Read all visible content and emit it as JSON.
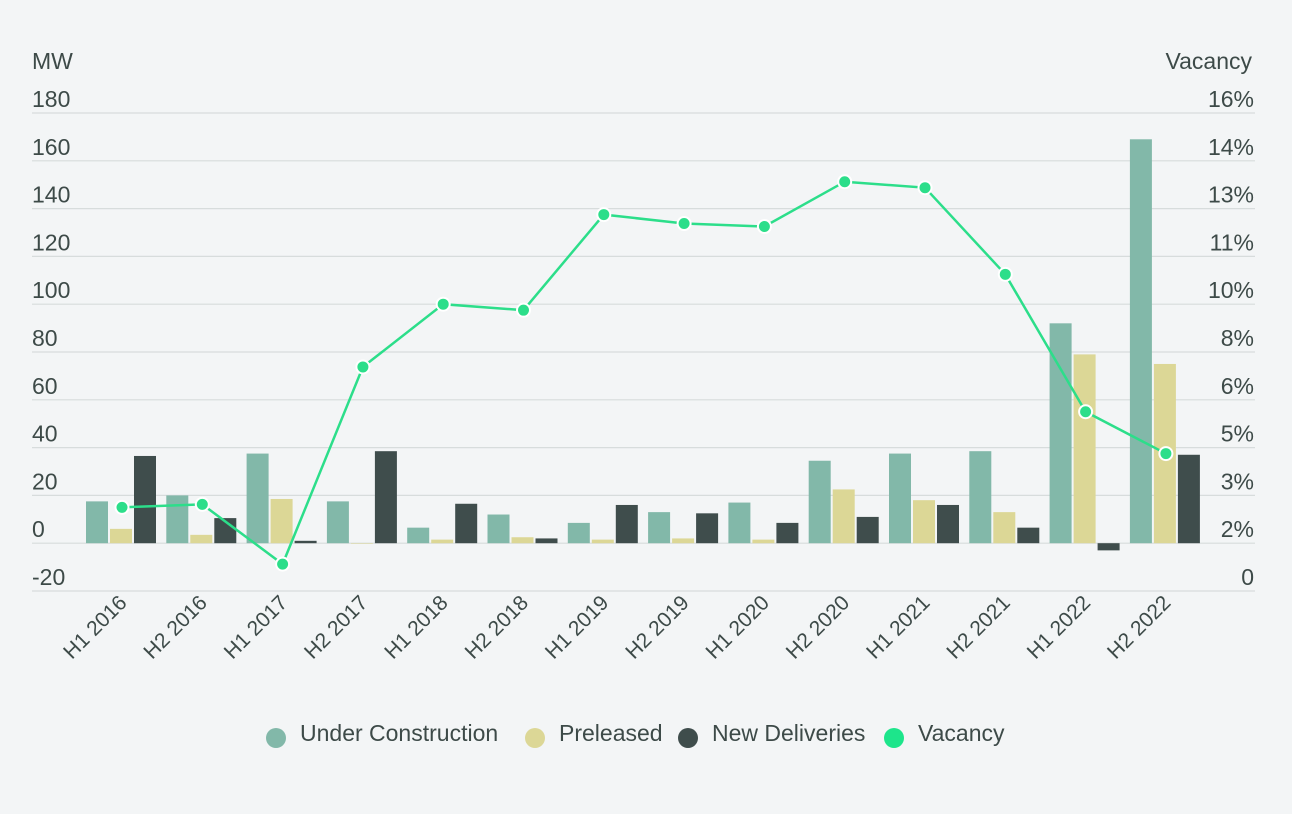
{
  "chart_data": {
    "type": "bar",
    "left_axis_title": "MW",
    "right_axis_title": "Vacancy",
    "categories": [
      "H1 2016",
      "H2 2016",
      "H1 2017",
      "H2 2017",
      "H1 2018",
      "H2 2018",
      "H1 2019",
      "H2 2019",
      "H1 2020",
      "H2 2020",
      "H1 2021",
      "H2 2021",
      "H1 2022",
      "H2 2022"
    ],
    "ylim": [
      -20,
      180
    ],
    "y_ticks": [
      180,
      160,
      140,
      120,
      100,
      80,
      60,
      40,
      20,
      0,
      -20
    ],
    "y_tick_labels": [
      "180",
      "160",
      "140",
      "120",
      "100",
      "80",
      "60",
      "40",
      "20",
      "0",
      "-20"
    ],
    "y2lim": [
      0,
      16
    ],
    "y2_ticks": [
      16,
      14,
      13,
      11,
      10,
      8,
      6,
      5,
      3,
      2,
      0
    ],
    "y2_tick_labels": [
      "16%",
      "14%",
      "13%",
      "11%",
      "10%",
      "8%",
      "6%",
      "5%",
      "3%",
      "2%",
      "0"
    ],
    "series": [
      {
        "name": "Under Construction",
        "kind": "bar",
        "color": "#82b8a9",
        "values": [
          17.5,
          20,
          37.5,
          17.5,
          6.5,
          12,
          8.5,
          13,
          17,
          34.5,
          37.5,
          38.5,
          92,
          169
        ]
      },
      {
        "name": "Preleased",
        "kind": "bar",
        "color": "#dcd796",
        "values": [
          6,
          3.5,
          18.5,
          0,
          1.5,
          2.5,
          1.5,
          2,
          1.5,
          22.5,
          18,
          13,
          79,
          75
        ]
      },
      {
        "name": "New Deliveries",
        "kind": "bar",
        "color": "#3f4d4c",
        "values": [
          36.5,
          10.5,
          1,
          38.5,
          16.5,
          2,
          16,
          12.5,
          8.5,
          11,
          16,
          6.5,
          -3,
          37
        ]
      },
      {
        "name": "Vacancy",
        "kind": "line",
        "axis": "right",
        "color": "#2cde8a",
        "values": [
          2.8,
          2.9,
          0.9,
          7.5,
          9.6,
          9.4,
          12.6,
          12.3,
          12.2,
          13.7,
          13.5,
          10.6,
          6.0,
          4.6
        ]
      }
    ],
    "legend": {
      "position": "bottom-center",
      "items": [
        {
          "label": "Under Construction",
          "color": "#82b8a9"
        },
        {
          "label": "Preleased",
          "color": "#dcd796"
        },
        {
          "label": "New Deliveries",
          "color": "#3f4d4c"
        },
        {
          "label": "Vacancy",
          "color": "#1de58b"
        }
      ]
    }
  }
}
